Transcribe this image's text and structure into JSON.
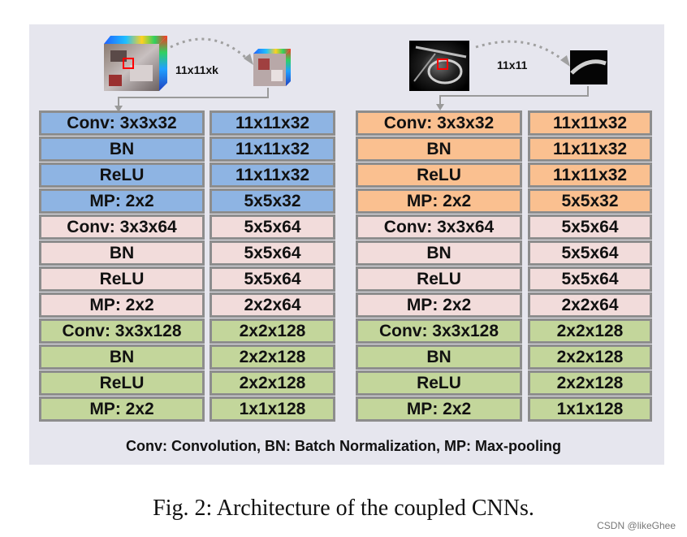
{
  "left_branch": {
    "patch_label": "11x11xk",
    "rows": [
      {
        "layer": "Conv: 3x3x32",
        "size": "11x11x32",
        "group": "1"
      },
      {
        "layer": "BN",
        "size": "11x11x32",
        "group": "1"
      },
      {
        "layer": "ReLU",
        "size": "11x11x32",
        "group": "1"
      },
      {
        "layer": "MP: 2x2",
        "size": "5x5x32",
        "group": "1"
      },
      {
        "layer": "Conv: 3x3x64",
        "size": "5x5x64",
        "group": "2"
      },
      {
        "layer": "BN",
        "size": "5x5x64",
        "group": "2"
      },
      {
        "layer": "ReLU",
        "size": "5x5x64",
        "group": "2"
      },
      {
        "layer": "MP: 2x2",
        "size": "2x2x64",
        "group": "2"
      },
      {
        "layer": "Conv: 3x3x128",
        "size": "2x2x128",
        "group": "3"
      },
      {
        "layer": "BN",
        "size": "2x2x128",
        "group": "3"
      },
      {
        "layer": "ReLU",
        "size": "2x2x128",
        "group": "3"
      },
      {
        "layer": "MP: 2x2",
        "size": "1x1x128",
        "group": "3"
      }
    ]
  },
  "right_branch": {
    "patch_label": "11x11",
    "rows": [
      {
        "layer": "Conv: 3x3x32",
        "size": "11x11x32",
        "group": "1"
      },
      {
        "layer": "BN",
        "size": "11x11x32",
        "group": "1"
      },
      {
        "layer": "ReLU",
        "size": "11x11x32",
        "group": "1"
      },
      {
        "layer": "MP: 2x2",
        "size": "5x5x32",
        "group": "1"
      },
      {
        "layer": "Conv: 3x3x64",
        "size": "5x5x64",
        "group": "2"
      },
      {
        "layer": "BN",
        "size": "5x5x64",
        "group": "2"
      },
      {
        "layer": "ReLU",
        "size": "5x5x64",
        "group": "2"
      },
      {
        "layer": "MP: 2x2",
        "size": "2x2x64",
        "group": "2"
      },
      {
        "layer": "Conv: 3x3x128",
        "size": "2x2x128",
        "group": "3"
      },
      {
        "layer": "BN",
        "size": "2x2x128",
        "group": "3"
      },
      {
        "layer": "ReLU",
        "size": "2x2x128",
        "group": "3"
      },
      {
        "layer": "MP: 2x2",
        "size": "1x1x128",
        "group": "3"
      }
    ]
  },
  "colors": {
    "left_group1": "#8eb4e3",
    "right_group1": "#fac090",
    "group2": "#f2dcdb",
    "group3": "#c3d69b",
    "panel_background": "#e6e6ee",
    "box_border": "#8d8d8d"
  },
  "legend": "Conv: Convolution,  BN: Batch Normalization,  MP: Max-pooling",
  "caption": "Fig. 2: Architecture of the coupled CNNs.",
  "watermark": "CSDN @likeGhee"
}
